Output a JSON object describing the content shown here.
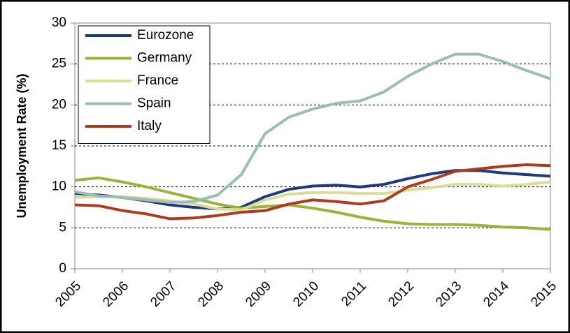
{
  "chart_data": {
    "type": "line",
    "ylabel": "Unemployment Rate (%)",
    "x": [
      2005,
      2005.5,
      2006,
      2006.5,
      2007,
      2007.5,
      2008,
      2008.5,
      2009,
      2009.5,
      2010,
      2010.5,
      2011,
      2011.5,
      2012,
      2012.5,
      2013,
      2013.5,
      2014,
      2014.5,
      2015
    ],
    "series": [
      {
        "name": "Eurozone",
        "color": "#1f3a7a",
        "values": [
          9.2,
          9.0,
          8.7,
          8.3,
          7.8,
          7.5,
          7.3,
          7.5,
          8.8,
          9.7,
          10.1,
          10.2,
          10.0,
          10.3,
          11.0,
          11.6,
          12.0,
          12.0,
          11.7,
          11.5,
          11.3
        ]
      },
      {
        "name": "Germany",
        "color": "#9ab33a",
        "values": [
          10.8,
          11.1,
          10.6,
          10.0,
          9.3,
          8.6,
          7.9,
          7.4,
          7.6,
          7.8,
          7.4,
          6.9,
          6.3,
          5.8,
          5.5,
          5.4,
          5.4,
          5.3,
          5.1,
          5.0,
          4.8
        ]
      },
      {
        "name": "France",
        "color": "#d9dc9a",
        "values": [
          8.7,
          8.8,
          8.8,
          8.6,
          8.3,
          7.9,
          7.3,
          7.2,
          8.4,
          9.1,
          9.3,
          9.3,
          9.2,
          9.2,
          9.6,
          9.9,
          10.3,
          10.3,
          10.1,
          10.3,
          10.6
        ]
      },
      {
        "name": "Spain",
        "color": "#9cbcb8",
        "values": [
          9.4,
          8.9,
          8.7,
          8.4,
          8.1,
          8.2,
          9.0,
          11.5,
          16.5,
          18.5,
          19.5,
          20.2,
          20.5,
          21.6,
          23.5,
          25.0,
          26.2,
          26.2,
          25.3,
          24.2,
          23.2
        ]
      },
      {
        "name": "Italy",
        "color": "#b03a1e",
        "values": [
          7.8,
          7.7,
          7.1,
          6.7,
          6.1,
          6.2,
          6.5,
          6.9,
          7.1,
          7.9,
          8.4,
          8.2,
          7.9,
          8.3,
          10.0,
          10.9,
          11.9,
          12.2,
          12.5,
          12.7,
          12.6
        ]
      }
    ],
    "xlim": [
      2005,
      2015
    ],
    "xticks": [
      2005,
      2006,
      2007,
      2008,
      2009,
      2010,
      2011,
      2012,
      2013,
      2014,
      2015
    ],
    "ylim": [
      0,
      30
    ],
    "yticks": [
      0,
      5,
      10,
      15,
      20,
      25,
      30
    ],
    "grid": true,
    "legend": "upper left"
  }
}
